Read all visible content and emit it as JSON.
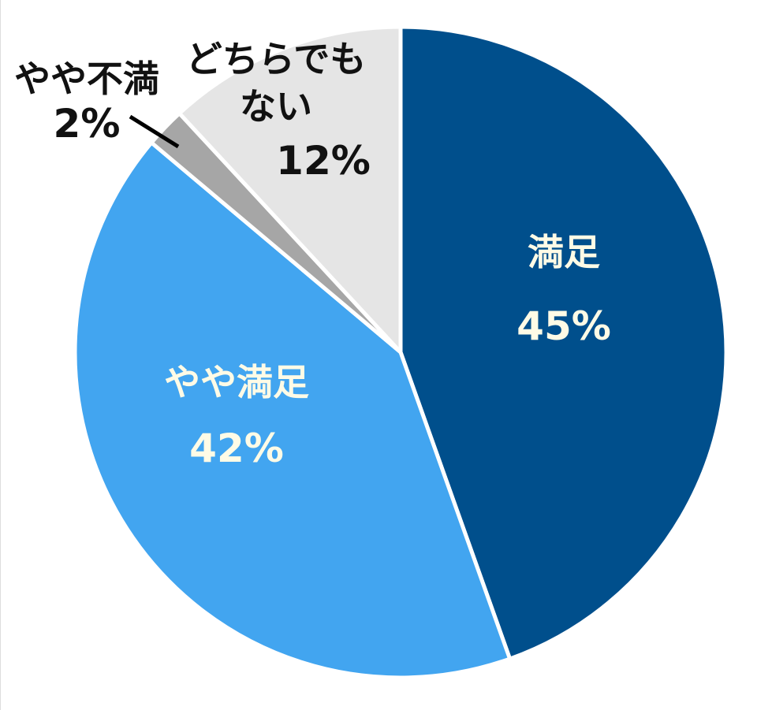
{
  "chart_data": {
    "type": "pie",
    "categories": [
      "満足",
      "やや満足",
      "やや不満",
      "どちらでもない"
    ],
    "values": [
      45,
      42,
      2,
      12
    ],
    "value_labels": [
      "45%",
      "42%",
      "2%",
      "12%"
    ],
    "colors": [
      "#004f8c",
      "#42a5f0",
      "#a6a6a6",
      "#e5e5e5"
    ]
  }
}
